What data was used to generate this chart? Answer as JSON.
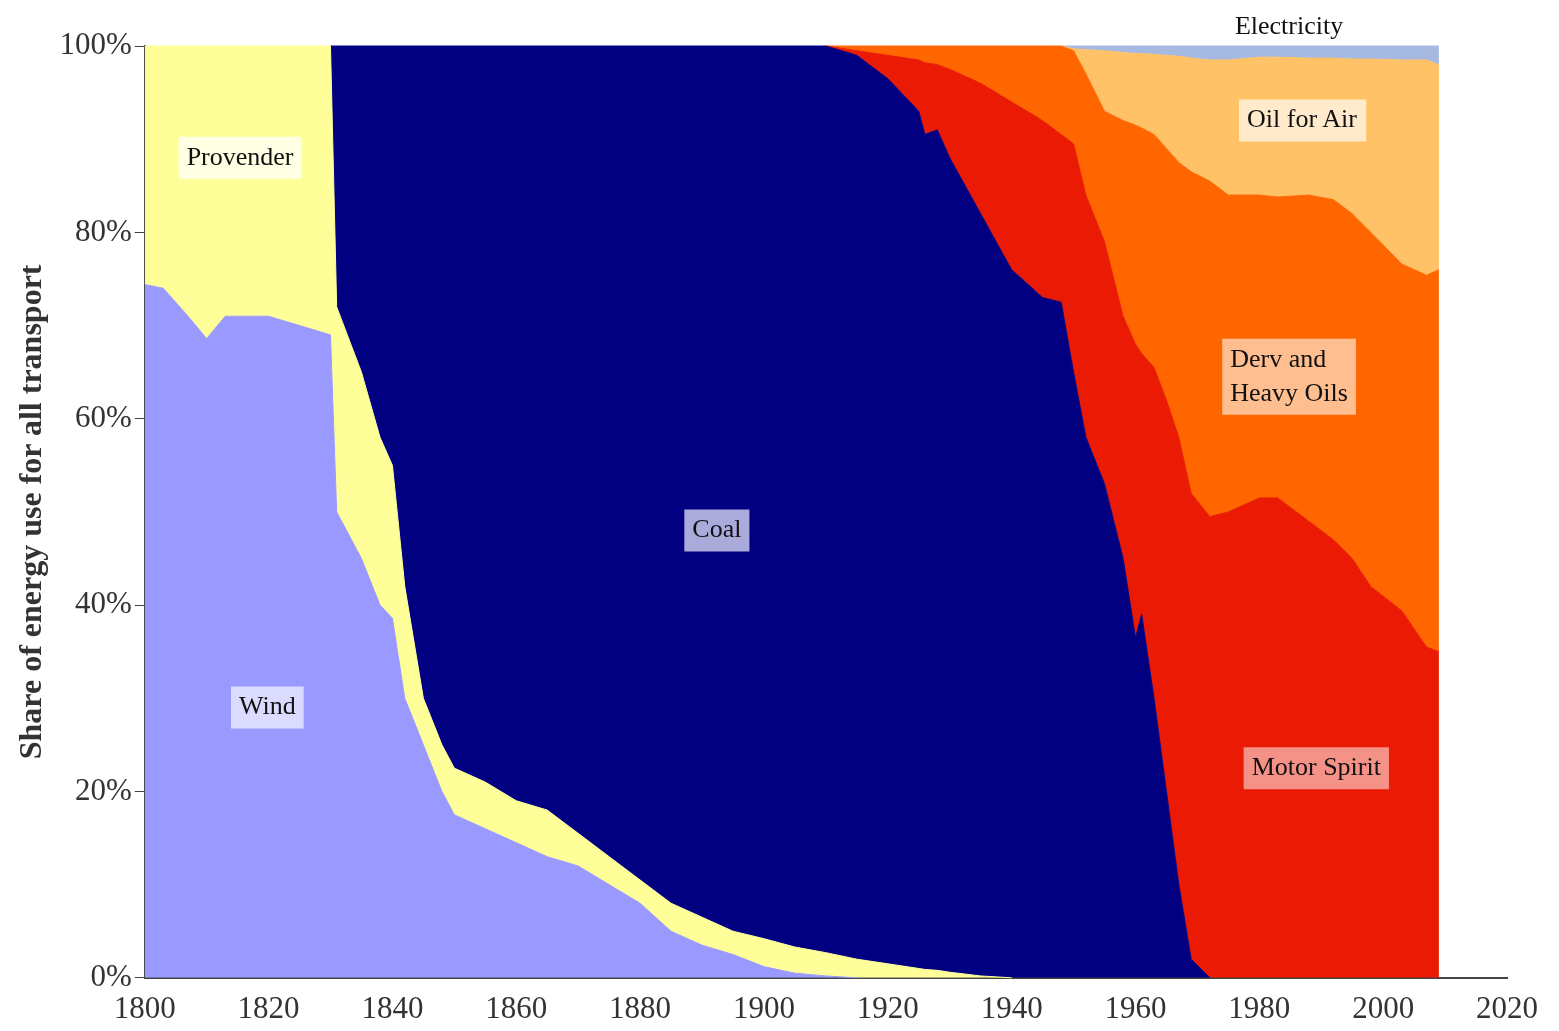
{
  "chart_data": {
    "type": "area",
    "stacked": true,
    "ylabel": "Share of energy use for all transport",
    "x": [
      1800,
      1803,
      1807,
      1810,
      1813,
      1820,
      1825,
      1830,
      1831,
      1835,
      1838,
      1840,
      1842,
      1845,
      1848,
      1850,
      1855,
      1860,
      1865,
      1870,
      1875,
      1880,
      1885,
      1890,
      1895,
      1900,
      1905,
      1910,
      1915,
      1920,
      1925,
      1926,
      1928,
      1930,
      1935,
      1940,
      1945,
      1948,
      1950,
      1952,
      1955,
      1958,
      1960,
      1961,
      1963,
      1965,
      1967,
      1969,
      1972,
      1975,
      1980,
      1983,
      1988,
      1992,
      1995,
      1998,
      2003,
      2007,
      2009
    ],
    "xlim": [
      1800,
      2020
    ],
    "xticks": [
      1800,
      1820,
      1840,
      1860,
      1880,
      1900,
      1920,
      1940,
      1960,
      1980,
      2000,
      2020
    ],
    "ylim": [
      0,
      100
    ],
    "yticks": [
      {
        "value": 0,
        "label": "0%"
      },
      {
        "value": 20,
        "label": "20%"
      },
      {
        "value": 40,
        "label": "40%"
      },
      {
        "value": 60,
        "label": "60%"
      },
      {
        "value": 80,
        "label": "80%"
      },
      {
        "value": 100,
        "label": "100%"
      }
    ],
    "series": [
      {
        "name": "Wind",
        "color": "#9999ff",
        "values": [
          74.4,
          74,
          71,
          68.6,
          71,
          71,
          70,
          69,
          50,
          45,
          40,
          38.6,
          30,
          25,
          20,
          17.5,
          16,
          14.5,
          13,
          12,
          10,
          8,
          5,
          3.5,
          2.5,
          1.2,
          0.5,
          0.2,
          0,
          null,
          null,
          null,
          null,
          null,
          null,
          null,
          null,
          null,
          null,
          null,
          null,
          null,
          null,
          null,
          null,
          null,
          null,
          null,
          null,
          null,
          null,
          null,
          null,
          null,
          null,
          null,
          null,
          null,
          null
        ]
      },
      {
        "name": "Provender",
        "color": "#ffff99",
        "values": [
          25.6,
          26,
          29,
          31.4,
          29,
          29,
          30,
          31,
          22,
          20,
          18,
          16.4,
          12,
          5,
          5,
          5,
          5,
          4.5,
          5,
          3.5,
          3,
          2.5,
          3,
          3,
          2.5,
          3,
          2.8,
          2.5,
          2,
          1.5,
          1,
          0.9,
          0.8,
          0.6,
          0.2,
          0,
          null,
          null,
          null,
          null,
          null,
          null,
          null,
          null,
          null,
          null,
          null,
          null,
          null,
          null,
          null,
          null,
          null,
          null,
          null,
          null,
          null,
          null,
          null
        ]
      },
      {
        "name": "Coal",
        "color": "#000080",
        "values": [
          null,
          null,
          null,
          null,
          null,
          null,
          null,
          0,
          28,
          35,
          42,
          45,
          58,
          70,
          75,
          77.5,
          79,
          81,
          82,
          84.5,
          87,
          89.5,
          92,
          93.5,
          95,
          95.8,
          96.7,
          97.3,
          97,
          95,
          92,
          89.6,
          90.2,
          87.4,
          81.8,
          76,
          73,
          72.5,
          65,
          58,
          53,
          45,
          36.5,
          39,
          30,
          20,
          10,
          2,
          0,
          null,
          null,
          null,
          null,
          null,
          null,
          null,
          null,
          null,
          null
        ]
      },
      {
        "name": "Motor Spirit",
        "color": "#ea1a04",
        "values": [
          null,
          null,
          null,
          null,
          null,
          null,
          null,
          null,
          null,
          null,
          null,
          null,
          null,
          null,
          null,
          null,
          null,
          null,
          null,
          null,
          null,
          null,
          null,
          null,
          null,
          null,
          null,
          0,
          0.5,
          2.5,
          5.5,
          7.7,
          7,
          9.5,
          14,
          18,
          19,
          18,
          24.5,
          26,
          26,
          26,
          31.5,
          28,
          35.5,
          42,
          48,
          50,
          49.5,
          50,
          51.5,
          51.5,
          49,
          47,
          45,
          42,
          39.4,
          35.5,
          35
        ]
      },
      {
        "name": "Derv and Heavy Oils",
        "color": "#ff6600",
        "values": [
          null,
          null,
          null,
          null,
          null,
          null,
          null,
          null,
          null,
          null,
          null,
          null,
          null,
          null,
          null,
          null,
          null,
          null,
          null,
          null,
          null,
          null,
          null,
          null,
          null,
          null,
          null,
          0,
          0.5,
          1,
          1.5,
          1.8,
          2,
          2.5,
          4,
          6,
          8,
          9.5,
          10,
          13,
          14,
          21,
          23.5,
          24.2,
          25,
          27,
          29.5,
          34.5,
          36,
          34,
          32.5,
          32.3,
          35,
          36.5,
          37,
          38,
          37.2,
          39.9,
          41
        ]
      },
      {
        "name": "Oil for Air",
        "color": "#ffc266",
        "values": [
          null,
          null,
          null,
          null,
          null,
          null,
          null,
          null,
          null,
          null,
          null,
          null,
          null,
          null,
          null,
          null,
          null,
          null,
          null,
          null,
          null,
          null,
          null,
          null,
          null,
          null,
          null,
          null,
          null,
          null,
          null,
          null,
          null,
          null,
          null,
          null,
          null,
          0,
          0.2,
          2.6,
          6.5,
          7.3,
          7.7,
          8,
          8.6,
          10,
          11.4,
          12.2,
          13,
          14.5,
          14.8,
          15,
          14.7,
          15.2,
          16.6,
          18.6,
          21.9,
          23.1,
          22
        ]
      },
      {
        "name": "Electricity",
        "color": "#a6b9e0",
        "values": [
          null,
          null,
          null,
          null,
          null,
          null,
          null,
          null,
          null,
          null,
          null,
          null,
          null,
          null,
          null,
          null,
          null,
          null,
          null,
          null,
          null,
          null,
          null,
          null,
          null,
          null,
          null,
          null,
          null,
          null,
          null,
          null,
          null,
          null,
          null,
          null,
          null,
          0,
          0.3,
          0.4,
          0.5,
          0.7,
          0.8,
          0.8,
          0.9,
          1,
          1.1,
          1.3,
          1.5,
          1.5,
          1.2,
          1.2,
          1.3,
          1.3,
          1.4,
          1.4,
          1.5,
          1.5,
          2
        ]
      }
    ]
  }
}
